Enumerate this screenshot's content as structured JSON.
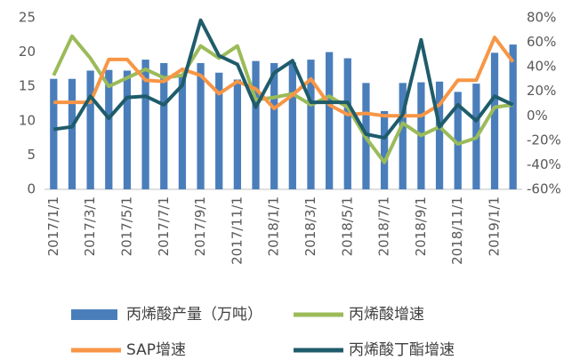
{
  "chart_data": {
    "type": "bar-line",
    "categories": [
      "2017/1/1",
      null,
      "2017/3/1",
      null,
      "2017/5/1",
      null,
      "2017/7/1",
      null,
      "2017/9/1",
      null,
      "2017/11/1",
      null,
      "2018/1/1",
      null,
      "2018/3/1",
      null,
      "2018/5/1",
      null,
      "2018/7/1",
      null,
      "2018/9/1",
      null,
      "2018/11/1",
      null,
      "2019/1/1",
      null
    ],
    "series": [
      {
        "name": "丙烯酸产量（万吨）",
        "type": "bar",
        "axis": "y",
        "color": "#4a7ebb",
        "values": [
          16.1,
          16.1,
          17.3,
          17.4,
          17.3,
          18.9,
          18.4,
          16.5,
          18.4,
          17.0,
          16.0,
          18.7,
          18.4,
          18.5,
          18.9,
          20.0,
          19.1,
          15.5,
          11.4,
          15.5,
          15.6,
          15.7,
          14.2,
          15.4,
          19.9,
          21.1
        ]
      },
      {
        "name": "丙烯酸增速",
        "type": "line",
        "axis": "y2",
        "color": "#9bbb59",
        "values": [
          33,
          65,
          47,
          24,
          31,
          38,
          31,
          33,
          57,
          47,
          57,
          13,
          15,
          18,
          9,
          16,
          7,
          -18,
          -38,
          -6,
          -16,
          -9,
          -23,
          -18,
          7,
          9
        ]
      },
      {
        "name": "SAP增速",
        "type": "line",
        "axis": "y2",
        "color": "#f79646",
        "values": [
          11,
          11,
          11,
          46,
          46,
          29,
          28,
          38,
          33,
          18,
          28,
          22,
          6,
          17,
          30,
          9,
          1,
          2,
          0,
          0,
          0,
          9,
          29,
          29,
          64,
          44
        ]
      },
      {
        "name": "丙烯酸丁酯增速",
        "type": "line",
        "axis": "y2",
        "color": "#1f5c6b",
        "values": [
          -11,
          -9,
          16,
          -2,
          15,
          16,
          9,
          25,
          78,
          49,
          42,
          7,
          35,
          45,
          11,
          11,
          11,
          -15,
          -18,
          1,
          62,
          -9,
          9,
          -4,
          16,
          9
        ]
      }
    ],
    "ylim": [
      0,
      25
    ],
    "yticks": [
      0,
      5,
      10,
      15,
      20,
      25
    ],
    "y2lim": [
      -60,
      80
    ],
    "y2ticks": [
      {
        "value": -60,
        "label": "-60%"
      },
      {
        "value": -40,
        "label": "-40%"
      },
      {
        "value": -20,
        "label": "-20%"
      },
      {
        "value": 0,
        "label": "0%"
      },
      {
        "value": 20,
        "label": "20%"
      },
      {
        "value": 40,
        "label": "40%"
      },
      {
        "value": 60,
        "label": "60%"
      },
      {
        "value": 80,
        "label": "80%"
      }
    ]
  }
}
